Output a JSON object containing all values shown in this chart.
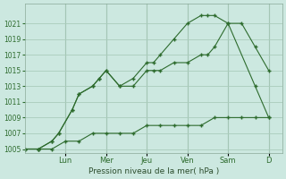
{
  "background_color": "#cce8e0",
  "grid_color": "#aaccbb",
  "line_color": "#2d6b2d",
  "xlabel": "Pression niveau de la mer( hPa )",
  "ylim": [
    1004.5,
    1023.5
  ],
  "yticks": [
    1005,
    1007,
    1009,
    1011,
    1013,
    1015,
    1017,
    1019,
    1021
  ],
  "x_day_labels": [
    "Lun",
    "Mer",
    "Jeu",
    "Ven",
    "Sam",
    "D"
  ],
  "x_day_positions": [
    6,
    12,
    18,
    24,
    30,
    36
  ],
  "xlim": [
    0,
    38
  ],
  "series1_x": [
    0,
    2,
    4,
    6,
    8,
    10,
    12,
    14,
    16,
    18,
    20,
    22,
    24,
    26,
    28,
    30,
    32,
    34,
    36
  ],
  "series1_y": [
    1005,
    1005,
    1005,
    1006,
    1006,
    1007,
    1007,
    1007,
    1007,
    1008,
    1008,
    1008,
    1008,
    1008,
    1009,
    1009,
    1009,
    1009,
    1009
  ],
  "series2_x": [
    0,
    2,
    4,
    5,
    7,
    8,
    10,
    11,
    12,
    14,
    16,
    18,
    19,
    20,
    22,
    24,
    26,
    27,
    28,
    30,
    32,
    34,
    36
  ],
  "series2_y": [
    1005,
    1005,
    1006,
    1007,
    1010,
    1012,
    1013,
    1014,
    1015,
    1013,
    1013,
    1015,
    1015,
    1015,
    1016,
    1016,
    1017,
    1017,
    1018,
    1021,
    1021,
    1018,
    1015
  ],
  "series3_x": [
    0,
    2,
    4,
    5,
    7,
    8,
    10,
    11,
    12,
    14,
    16,
    18,
    19,
    20,
    22,
    24,
    26,
    27,
    28,
    30,
    34,
    36
  ],
  "series3_y": [
    1005,
    1005,
    1006,
    1007,
    1010,
    1012,
    1013,
    1014,
    1015,
    1013,
    1014,
    1016,
    1016,
    1017,
    1019,
    1021,
    1022,
    1022,
    1022,
    1021,
    1013,
    1009
  ],
  "xlabel_fontsize": 6.5,
  "ytick_fontsize": 5.5,
  "xtick_fontsize": 6
}
